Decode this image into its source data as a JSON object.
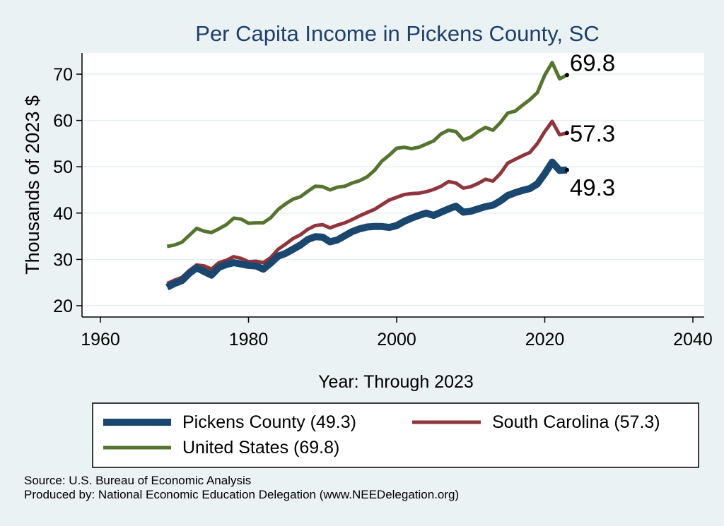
{
  "chart_data": {
    "type": "line",
    "title": "Per Capita Income in Pickens County, SC",
    "xlabel": "Year: Through 2023",
    "ylabel": "Thousands of 2023 $",
    "xlim": [
      1960,
      2040
    ],
    "ylim": [
      20,
      75
    ],
    "x_ticks": [
      "1960",
      "1980",
      "2000",
      "2020",
      "2040"
    ],
    "y_ticks": [
      "20",
      "30",
      "40",
      "50",
      "60",
      "70"
    ],
    "grid": true,
    "legend_position": "bottom",
    "x": [
      1969,
      1970,
      1971,
      1972,
      1973,
      1974,
      1975,
      1976,
      1977,
      1978,
      1979,
      1980,
      1981,
      1982,
      1983,
      1984,
      1985,
      1986,
      1987,
      1988,
      1989,
      1990,
      1991,
      1992,
      1993,
      1994,
      1995,
      1996,
      1997,
      1998,
      1999,
      2000,
      2001,
      2002,
      2003,
      2004,
      2005,
      2006,
      2007,
      2008,
      2009,
      2010,
      2011,
      2012,
      2013,
      2014,
      2015,
      2016,
      2017,
      2018,
      2019,
      2020,
      2021,
      2022,
      2023
    ],
    "series": [
      {
        "name": "Pickens County (49.3)",
        "color": "#1a476f",
        "end_label": "49.3",
        "values": [
          24.0,
          24.8,
          25.4,
          27.0,
          28.2,
          27.4,
          26.6,
          28.3,
          28.9,
          29.3,
          29.0,
          28.7,
          28.6,
          27.9,
          29.2,
          30.7,
          31.3,
          32.2,
          33.1,
          34.3,
          34.9,
          34.8,
          33.8,
          34.2,
          35.1,
          36.0,
          36.6,
          37.0,
          37.1,
          37.1,
          36.9,
          37.3,
          38.2,
          38.9,
          39.5,
          40.0,
          39.5,
          40.2,
          40.9,
          41.5,
          40.2,
          40.4,
          40.9,
          41.4,
          41.7,
          42.6,
          43.8,
          44.4,
          44.9,
          45.3,
          46.3,
          48.5,
          51.0,
          49.2,
          49.3
        ]
      },
      {
        "name": "South Carolina (57.3)",
        "color": "#90353b",
        "end_label": "57.3",
        "values": [
          24.8,
          25.5,
          26.1,
          27.6,
          28.8,
          28.6,
          27.9,
          29.3,
          29.8,
          30.6,
          30.2,
          29.5,
          29.6,
          29.3,
          30.4,
          32.2,
          33.3,
          34.5,
          35.3,
          36.5,
          37.3,
          37.5,
          36.8,
          37.4,
          37.9,
          38.6,
          39.4,
          40.1,
          40.8,
          41.8,
          42.8,
          43.4,
          44.0,
          44.2,
          44.3,
          44.6,
          45.1,
          45.8,
          46.8,
          46.5,
          45.4,
          45.7,
          46.4,
          47.3,
          46.9,
          48.5,
          50.8,
          51.6,
          52.4,
          53.1,
          55.0,
          57.6,
          59.8,
          56.9,
          57.3
        ]
      },
      {
        "name": "United States (69.8)",
        "color": "#55752f",
        "end_label": "69.8",
        "values": [
          32.8,
          33.1,
          33.7,
          35.2,
          36.7,
          36.1,
          35.8,
          36.6,
          37.5,
          38.9,
          38.7,
          37.8,
          37.9,
          37.9,
          39.0,
          40.8,
          42.0,
          43.0,
          43.5,
          44.7,
          45.8,
          45.7,
          45.0,
          45.6,
          45.8,
          46.5,
          47.0,
          47.8,
          49.2,
          51.2,
          52.5,
          54.0,
          54.2,
          53.9,
          54.2,
          54.9,
          55.6,
          57.1,
          57.9,
          57.6,
          55.8,
          56.4,
          57.6,
          58.5,
          57.9,
          59.5,
          61.6,
          62.0,
          63.3,
          64.5,
          66.0,
          69.8,
          72.5,
          69.0,
          69.8
        ]
      }
    ]
  },
  "footer": {
    "source": "Source: U.S. Bureau of Economic Analysis",
    "produced_by": "Produced by: National Economic Education Delegation (www.NEEDelegation.org)"
  }
}
